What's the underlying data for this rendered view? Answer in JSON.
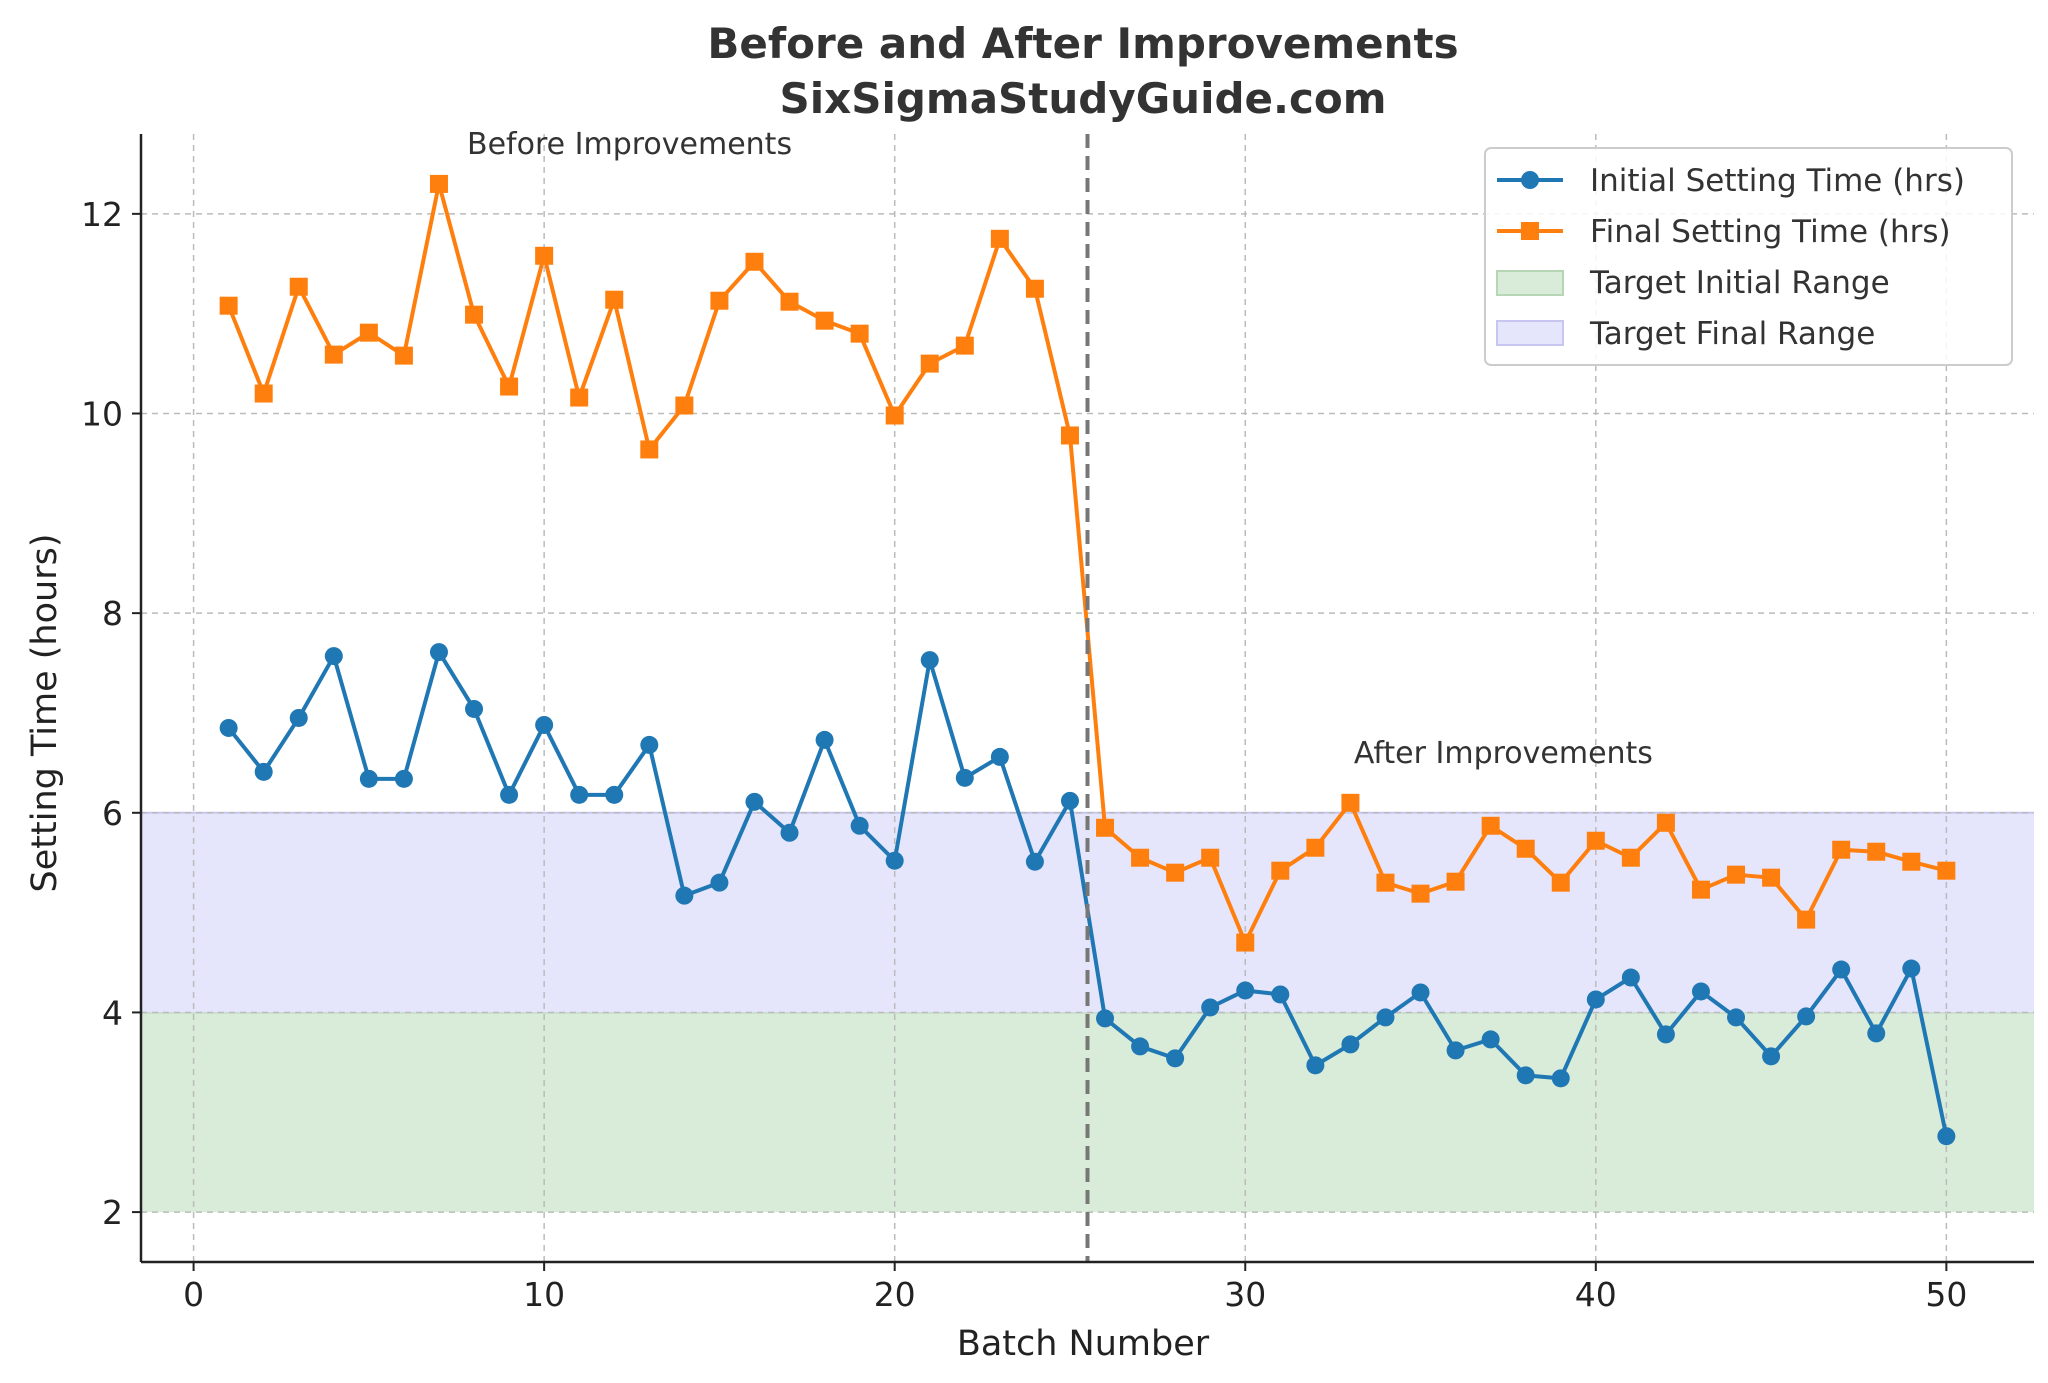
{
  "chart_data": {
    "type": "line",
    "title": "Before and After Improvements",
    "subtitle": "SixSigmaStudyGuide.com",
    "xlabel": "Batch Number",
    "ylabel": "Setting Time (hours)",
    "xlim": [
      -1.5,
      52.5
    ],
    "ylim": [
      1.5,
      12.8
    ],
    "x_ticks": [
      0,
      10,
      20,
      30,
      40,
      50
    ],
    "y_ticks": [
      2,
      4,
      6,
      8,
      10,
      12
    ],
    "grid": true,
    "legend_position": "top-right",
    "x": [
      1,
      2,
      3,
      4,
      5,
      6,
      7,
      8,
      9,
      10,
      11,
      12,
      13,
      14,
      15,
      16,
      17,
      18,
      19,
      20,
      21,
      22,
      23,
      24,
      25,
      26,
      27,
      28,
      29,
      30,
      31,
      32,
      33,
      34,
      35,
      36,
      37,
      38,
      39,
      40,
      41,
      42,
      43,
      44,
      45,
      46,
      47,
      48,
      49,
      50
    ],
    "series": [
      {
        "name": "Initial Setting Time (hrs)",
        "color": "#1f77b4",
        "marker": "circle",
        "values": [
          6.85,
          6.41,
          6.95,
          7.57,
          6.34,
          6.34,
          7.61,
          7.04,
          6.18,
          6.88,
          6.18,
          6.18,
          6.68,
          5.17,
          5.3,
          6.11,
          5.8,
          6.73,
          5.87,
          5.52,
          7.53,
          6.35,
          6.56,
          5.51,
          6.12,
          3.94,
          3.66,
          3.54,
          4.05,
          4.22,
          4.18,
          3.47,
          3.68,
          3.95,
          4.2,
          3.62,
          3.73,
          3.37,
          3.34,
          4.13,
          4.35,
          3.78,
          4.21,
          3.95,
          3.56,
          3.96,
          4.43,
          3.79,
          4.44,
          2.76
        ]
      },
      {
        "name": "Final Setting Time (hrs)",
        "color": "#ff7f0e",
        "marker": "square",
        "values": [
          11.08,
          10.2,
          11.27,
          10.59,
          10.81,
          10.58,
          12.3,
          10.99,
          10.27,
          11.58,
          10.16,
          11.14,
          9.64,
          10.08,
          11.13,
          11.52,
          11.12,
          10.93,
          10.8,
          9.98,
          10.5,
          10.68,
          11.75,
          11.25,
          9.78,
          5.85,
          5.55,
          5.4,
          5.55,
          4.7,
          5.42,
          5.65,
          6.1,
          5.3,
          5.19,
          5.31,
          5.87,
          5.64,
          5.3,
          5.72,
          5.55,
          5.9,
          5.23,
          5.38,
          5.35,
          4.93,
          5.63,
          5.61,
          5.51,
          5.42
        ]
      }
    ],
    "bands": [
      {
        "name": "Target Initial Range",
        "y0": 2,
        "y1": 4,
        "color": "#d9ecd9",
        "edge": "#b6d6b6"
      },
      {
        "name": "Target Final Range",
        "y0": 4,
        "y1": 6,
        "color": "#e5e5fc",
        "edge": "#c6c6f0"
      }
    ],
    "vline": {
      "x": 25.5,
      "color": "#777777"
    },
    "annotations": [
      {
        "text": "Before Improvements",
        "x": 7.8,
        "y": 12.7
      },
      {
        "text": "After Improvements",
        "x": 33.1,
        "y": 6.6
      }
    ]
  }
}
